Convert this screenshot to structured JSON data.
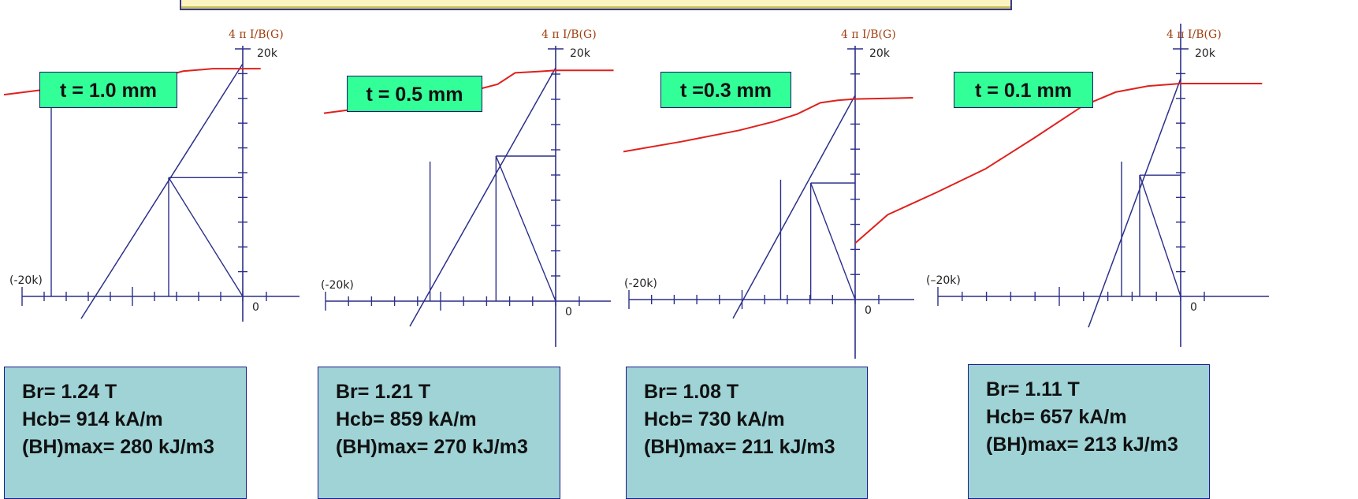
{
  "chart_data": [
    {
      "type": "line",
      "title": "t = 1.0 mm",
      "y_axis_title": "4 π I/B(G)",
      "y_top_label": "20k",
      "x_left_label": "(-20k)",
      "origin_label": "0",
      "xlim": [
        -20000,
        0
      ],
      "ylim": [
        0,
        20000
      ],
      "curve": [
        [
          -20000,
          16300
        ],
        [
          -17500,
          16600
        ],
        [
          -15000,
          16900
        ],
        [
          -12000,
          17200
        ],
        [
          -8000,
          17600
        ],
        [
          -6500,
          17800
        ],
        [
          -5000,
          18200
        ],
        [
          -2500,
          18400
        ],
        [
          0,
          18400
        ],
        [
          1500,
          18400
        ]
      ],
      "load_line": [
        [
          -12000,
          -1800
        ],
        [
          0,
          18800
        ]
      ],
      "br_line": [
        [
          -20000,
          16300
        ],
        [
          -20000,
          0
        ]
      ],
      "bhmax_point": [
        -5500,
        9600
      ],
      "results": {
        "br": "Br= 1.24 T",
        "hcb": "Hcb= 914 kA/m",
        "bhmax": "(BH)max=  280 kJ/m3"
      }
    },
    {
      "type": "line",
      "title": "t = 0.5 mm",
      "y_axis_title": "4 π I/B(G)",
      "y_top_label": "20k",
      "x_left_label": "(-20k)",
      "origin_label": "0",
      "xlim": [
        -20000,
        0
      ],
      "ylim": [
        0,
        20000
      ],
      "curve": [
        [
          -20000,
          14900
        ],
        [
          -15000,
          15500
        ],
        [
          -10000,
          16200
        ],
        [
          -7500,
          16600
        ],
        [
          -5000,
          17200
        ],
        [
          -3500,
          18100
        ],
        [
          -1500,
          18200
        ],
        [
          0,
          18300
        ],
        [
          5000,
          18300
        ]
      ],
      "load_line": [
        [
          -11000,
          -2000
        ],
        [
          0,
          18500
        ]
      ],
      "br_line": [
        [
          -9000,
          16500
        ],
        [
          -9000,
          0
        ]
      ],
      "bhmax_point": [
        -4500,
        11500
      ],
      "results": {
        "br": "Br= 1.21 T",
        "hcb": "Hcb= 859 kA/m",
        "bhmax": "(BH)max=  270 kJ/m3"
      }
    },
    {
      "type": "line",
      "title": "t =0.3 mm",
      "y_axis_title": "4 π I/B(G)",
      "y_top_label": "20k",
      "x_left_label": "(-20k)",
      "origin_label": "0",
      "xlim": [
        -20000,
        0
      ],
      "ylim": [
        0,
        20000
      ],
      "curve": [
        [
          -20000,
          11800
        ],
        [
          -15000,
          12600
        ],
        [
          -10000,
          13500
        ],
        [
          -7000,
          14200
        ],
        [
          -5000,
          14800
        ],
        [
          -3000,
          15700
        ],
        [
          -1500,
          15900
        ],
        [
          0,
          16000
        ],
        [
          5000,
          16100
        ]
      ],
      "load_line": [
        [
          -11000,
          -1500
        ],
        [
          0,
          16300
        ]
      ],
      "br_line": [
        [
          -6000,
          15000
        ],
        [
          -6000,
          0
        ]
      ],
      "bhmax_point": [
        -4000,
        9300
      ],
      "results": {
        "br": "Br= 1.08 T",
        "hcb": "Hcb= 730 kA/m",
        "bhmax": "(BH)max=  211 kJ/m3"
      }
    },
    {
      "type": "line",
      "title": "t = 0.1 mm",
      "y_axis_title": "4 π I/B(G)",
      "y_top_label": "20k",
      "x_left_label": "(–20k)",
      "origin_label": "0",
      "xlim": [
        -20000,
        0
      ],
      "ylim": [
        0,
        20000
      ],
      "curve": [
        [
          -20000,
          4300
        ],
        [
          -18000,
          6600
        ],
        [
          -15000,
          8400
        ],
        [
          -12000,
          10300
        ],
        [
          -9000,
          12800
        ],
        [
          -6000,
          15400
        ],
        [
          -4000,
          16500
        ],
        [
          -2000,
          17000
        ],
        [
          0,
          17200
        ],
        [
          5000,
          17200
        ]
      ],
      "load_line": [
        [
          -9000,
          -2500
        ],
        [
          0,
          17600
        ]
      ],
      "br_line": [
        [
          -5000,
          16000
        ],
        [
          -5000,
          0
        ]
      ],
      "bhmax_point": [
        -4000,
        9800
      ],
      "results": {
        "br": "Br= 1.11 T",
        "hcb": "Hcb= 657 kA/m",
        "bhmax": "(BH)max=  213 kJ/m3"
      }
    }
  ]
}
